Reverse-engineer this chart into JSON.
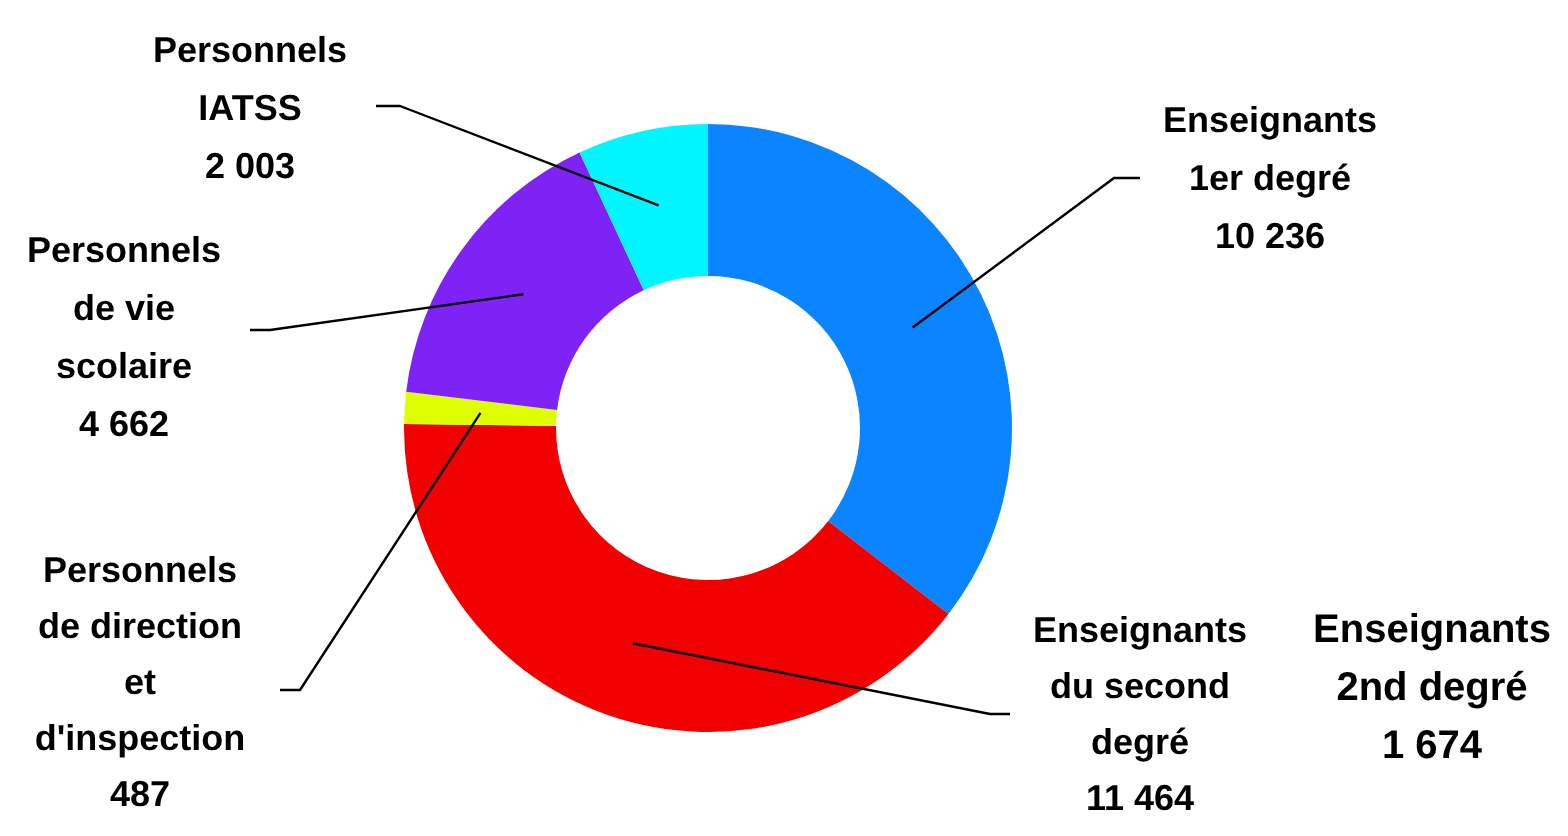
{
  "chart_data": {
    "type": "donut",
    "categories": [
      "Enseignants 1er degré",
      "Enseignants du second degré",
      "Personnels de direction et d'inspection",
      "Personnels de vie scolaire",
      "Personnels IATSS"
    ],
    "values": [
      10236,
      11464,
      487,
      4662,
      2003
    ],
    "colors": [
      "#0a84ff",
      "#f20000",
      "#ddff00",
      "#7f22f5",
      "#00f7ff"
    ],
    "value_labels": [
      "10 236",
      "11 464",
      "487",
      "4 662",
      "2 003"
    ],
    "annotations": [
      "Enseignants 2nd degré 1 674"
    ]
  }
}
